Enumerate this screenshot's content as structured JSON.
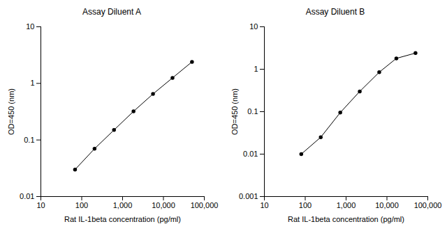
{
  "chart_data": [
    {
      "type": "line",
      "title": "Assay Diluent A",
      "xlabel": "Rat IL-1beta concentration (pg/ml)",
      "ylabel": "OD=450 (nm)",
      "x": [
        68.6,
        206,
        617,
        1852,
        5556,
        16667,
        50000
      ],
      "values": [
        0.03,
        0.07,
        0.15,
        0.32,
        0.65,
        1.25,
        2.4
      ],
      "xlim": [
        10,
        100000
      ],
      "ylim": [
        0.01,
        10
      ],
      "xticks": [
        10,
        100,
        {
          "value": 1000,
          "label": "1,000"
        },
        {
          "value": 10000,
          "label": "10,000"
        },
        {
          "value": 100000,
          "label": "100,000"
        }
      ],
      "yticks": [
        0.01,
        0.1,
        1,
        10
      ],
      "log": true,
      "color": "#000000",
      "marker": "circle"
    },
    {
      "type": "line",
      "title": "Assay Diluent B",
      "xlabel": "Rat IL-1beta concentration (pg/ml)",
      "ylabel": "OD=450 (nm)",
      "x": [
        80,
        240,
        720,
        2160,
        6480,
        17000,
        50000
      ],
      "values": [
        0.01,
        0.025,
        0.095,
        0.3,
        0.85,
        1.8,
        2.4
      ],
      "xlim": [
        10,
        100000
      ],
      "ylim": [
        0.001,
        10
      ],
      "xticks": [
        10,
        100,
        {
          "value": 1000,
          "label": "1,000"
        },
        {
          "value": 10000,
          "label": "10,000"
        },
        {
          "value": 100000,
          "label": "100,000"
        }
      ],
      "yticks": [
        0.001,
        0.01,
        0.1,
        1,
        10
      ],
      "log": true,
      "color": "#000000",
      "marker": "circle"
    }
  ]
}
